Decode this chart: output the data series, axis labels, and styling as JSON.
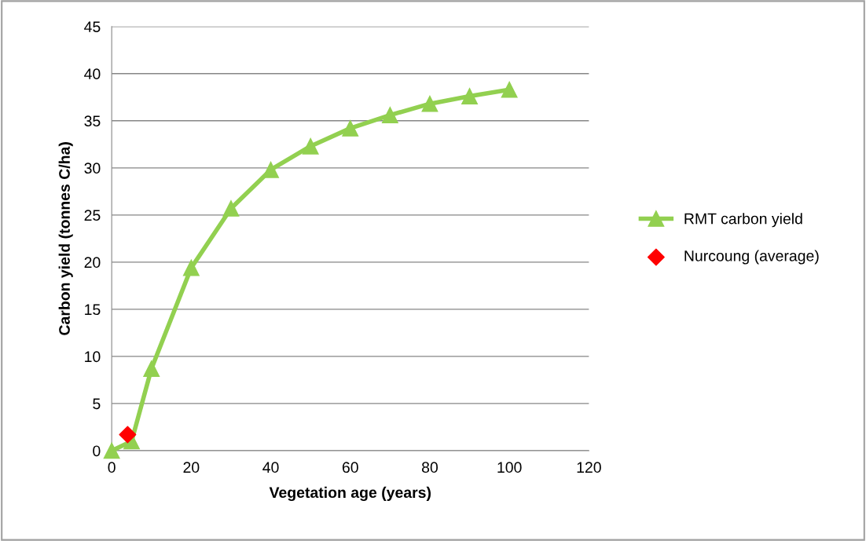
{
  "chart_data": {
    "type": "line",
    "xlabel": "Vegetation age (years)",
    "ylabel": "Carbon yield (tonnes C/ha)",
    "xlim": [
      0,
      120
    ],
    "xticks": [
      0,
      20,
      40,
      60,
      80,
      100,
      120
    ],
    "ylim": [
      0,
      45
    ],
    "yticks": [
      0,
      5,
      10,
      15,
      20,
      25,
      30,
      35,
      40,
      45
    ],
    "grid": "y",
    "legend": "right",
    "series": [
      {
        "name": "RMT carbon yield",
        "color": "#92d050",
        "marker": "triangle",
        "x": [
          0,
          5,
          10,
          20,
          30,
          40,
          50,
          60,
          70,
          80,
          90,
          100
        ],
        "values": [
          0,
          1,
          8.7,
          19.4,
          25.7,
          29.8,
          32.3,
          34.2,
          35.6,
          36.8,
          37.6,
          38.3
        ]
      },
      {
        "name": "Nurcoung (average)",
        "type": "scatter",
        "color": "#ff0000",
        "marker": "diamond",
        "x": [
          4
        ],
        "values": [
          1.7
        ]
      }
    ]
  }
}
